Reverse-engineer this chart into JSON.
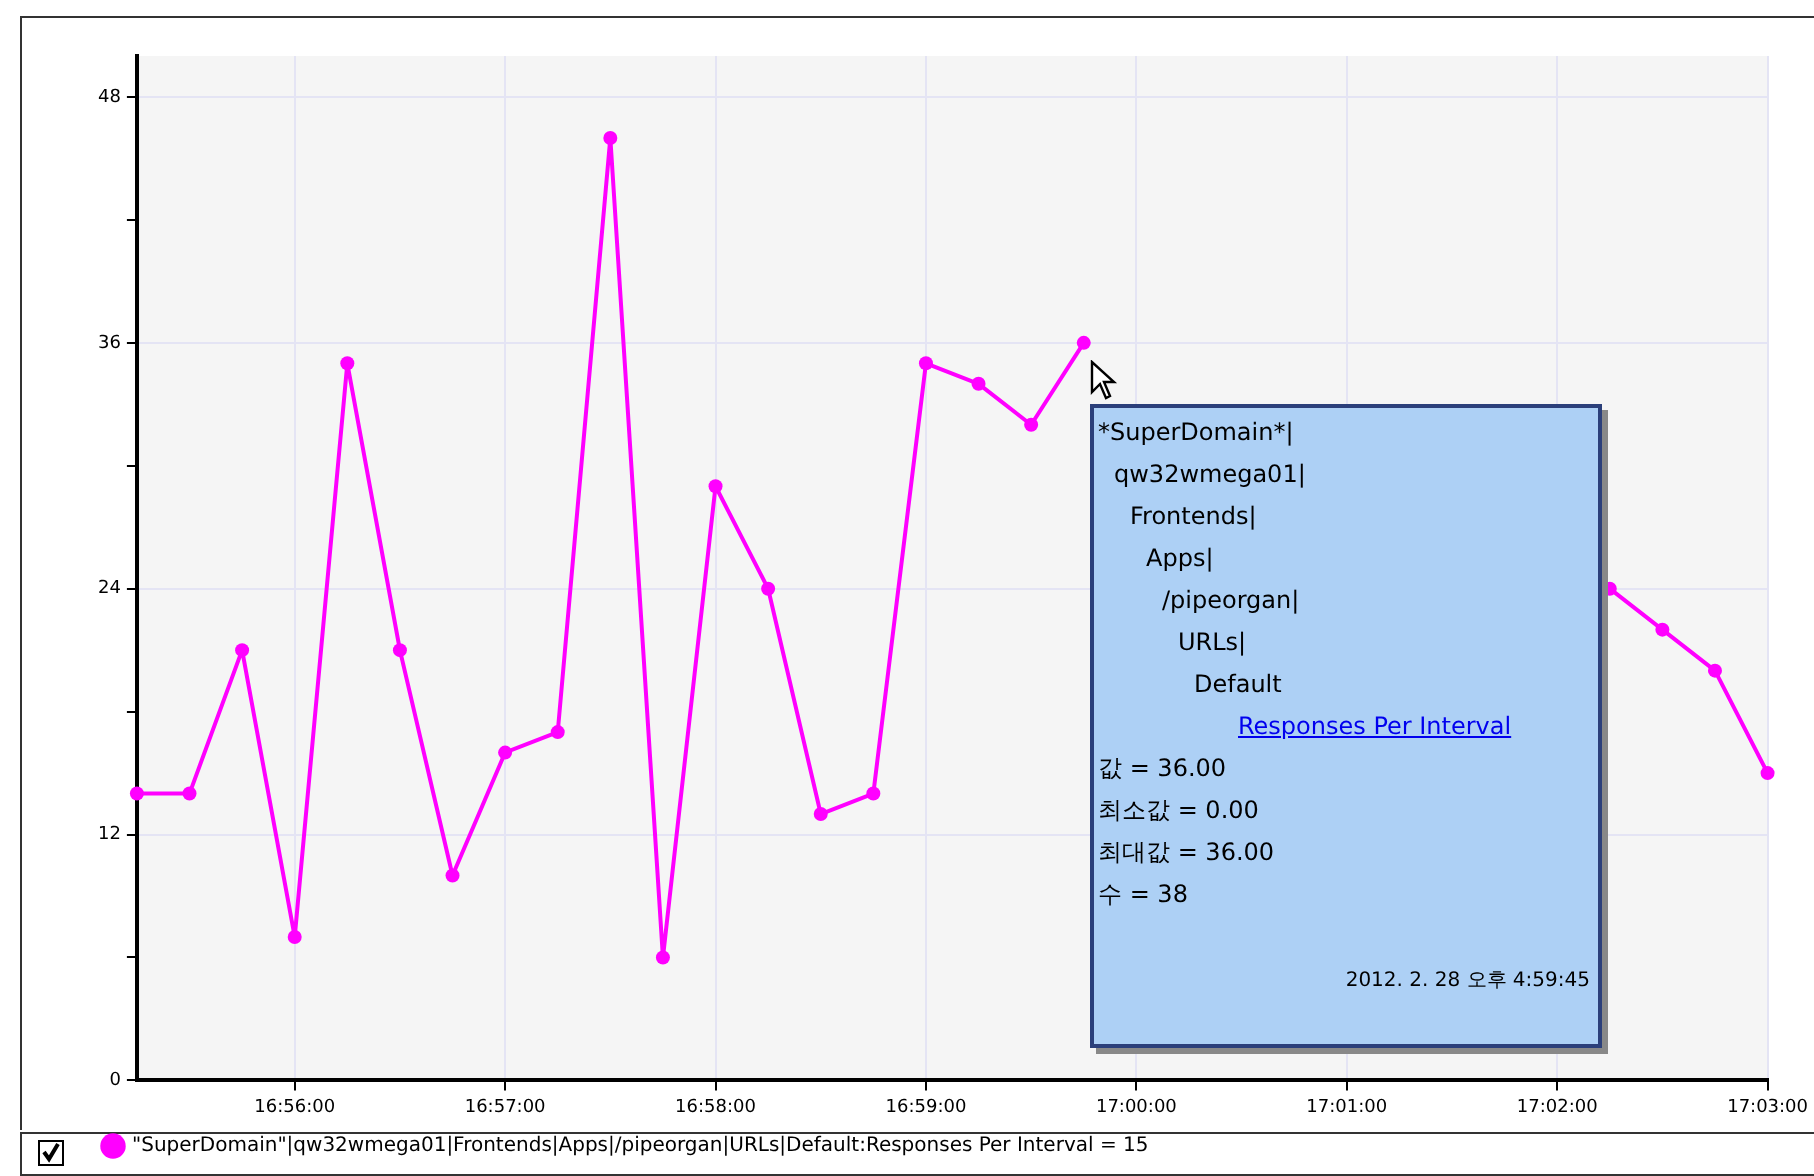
{
  "chart_data": {
    "type": "line",
    "categories": [
      null,
      null,
      null,
      "16:56:00",
      null,
      null,
      null,
      "16:57:00",
      null,
      null,
      null,
      "16:58:00",
      null,
      null,
      null,
      "16:59:00",
      null,
      null,
      null,
      "17:00:00",
      null,
      null,
      null,
      "17:01:00",
      null,
      null,
      null,
      "17:02:00",
      null,
      null,
      null,
      "17:03:00"
    ],
    "series": [
      {
        "name": "\"SuperDomain\"|qw32wmega01|Frontends|Apps|/pipeorgan|URLs|Default:Responses Per Interval = 15",
        "color": "#ff00ff",
        "values": [
          14,
          14,
          21,
          7,
          35,
          21,
          10,
          16,
          17,
          46,
          6,
          29,
          24,
          13,
          14,
          35,
          34,
          32,
          36,
          null,
          null,
          null,
          null,
          null,
          null,
          null,
          null,
          null,
          24,
          22,
          20,
          15
        ]
      }
    ],
    "ylim": [
      0,
      50
    ],
    "yticks": [
      0,
      {
        "value": 6,
        "label": null
      },
      12,
      {
        "value": 18,
        "label": null
      },
      24,
      {
        "value": 30,
        "label": null
      },
      36,
      {
        "value": 42,
        "label": null
      },
      48
    ],
    "grid": true,
    "legend": "bottom",
    "marker": "circle",
    "line_style": "solid",
    "annotations": [
      "*SuperDomain*|",
      "qw32wmega01|",
      "Frontends|",
      "Apps|",
      "/pipeorgan|",
      "URLs|",
      "Default",
      "Responses Per Interval",
      "값 = 36.00",
      "최소값 = 0.00",
      "최대값 = 36.00",
      "수 = 38",
      "2012. 2. 28 오후 4:59:45"
    ]
  }
}
